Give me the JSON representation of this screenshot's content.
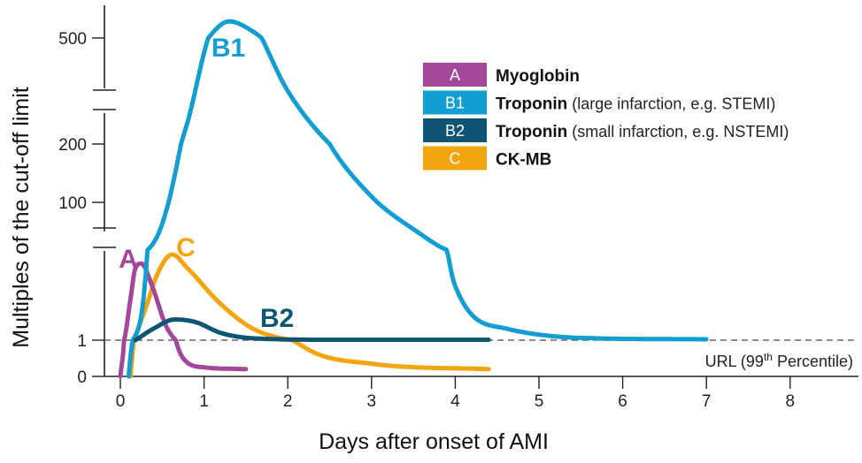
{
  "chart_data": {
    "type": "line",
    "xlabel": "Days after onset of AMI",
    "ylabel": "Multiples of the cut-off limit",
    "x_ticks": [
      0,
      1,
      2,
      3,
      4,
      5,
      6,
      7,
      8
    ],
    "y_ticks": [
      "0",
      "1",
      "100",
      "200",
      "500"
    ],
    "xlim": [
      0,
      8.6
    ],
    "y_axis_breaks": true,
    "reference_line": {
      "y": 1,
      "label_prefix": "URL (99",
      "label_sup": "th",
      "label_suffix": " Percentile)"
    },
    "series": [
      {
        "id": "A",
        "key": "A",
        "label": "A",
        "name": "Myoglobin",
        "note": "",
        "color": "#a3479a",
        "points": [
          [
            0.0,
            0
          ],
          [
            0.05,
            1.2
          ],
          [
            0.12,
            5.5
          ],
          [
            0.18,
            9.0
          ],
          [
            0.25,
            9.5
          ],
          [
            0.38,
            7.0
          ],
          [
            0.55,
            2.5
          ],
          [
            0.75,
            0.5
          ],
          [
            1.0,
            0.25
          ],
          [
            1.5,
            0.2
          ]
        ]
      },
      {
        "id": "B1",
        "key": "B1",
        "label": "B1",
        "name": "Troponin",
        "note": " (large infarction, e.g. STEMI)",
        "color": "#129ed0",
        "points": [
          [
            0.1,
            0
          ],
          [
            0.3,
            8
          ],
          [
            0.5,
            60
          ],
          [
            0.8,
            260
          ],
          [
            1.05,
            500
          ],
          [
            1.3,
            620
          ],
          [
            1.55,
            560
          ],
          [
            2.0,
            350
          ],
          [
            2.5,
            200
          ],
          [
            3.0,
            110
          ],
          [
            3.5,
            50
          ],
          [
            4.0,
            7
          ],
          [
            4.6,
            2.3
          ],
          [
            5.5,
            1.25
          ],
          [
            7.0,
            1.1
          ]
        ]
      },
      {
        "id": "B2",
        "key": "B2",
        "label": "B2",
        "name": "Troponin",
        "note": " (small infarction, e.g. NSTEMI)",
        "color": "#0d5573",
        "points": [
          [
            0.18,
            1.0
          ],
          [
            0.4,
            2.3
          ],
          [
            0.65,
            3.3
          ],
          [
            0.9,
            3.0
          ],
          [
            1.2,
            1.8
          ],
          [
            1.6,
            1.2
          ],
          [
            2.5,
            1.05
          ],
          [
            4.4,
            1.05
          ]
        ]
      },
      {
        "id": "C",
        "key": "C",
        "label": "C",
        "name": "CK-MB",
        "note": "",
        "color": "#f3a50f",
        "points": [
          [
            0.12,
            0
          ],
          [
            0.3,
            4.5
          ],
          [
            0.45,
            8.5
          ],
          [
            0.62,
            10.5
          ],
          [
            0.8,
            9.0
          ],
          [
            1.2,
            5.0
          ],
          [
            1.6,
            2.2
          ],
          [
            2.2,
            0.8
          ],
          [
            3.0,
            0.35
          ],
          [
            4.4,
            0.2
          ]
        ]
      }
    ],
    "legend": {
      "position": "top-right"
    }
  }
}
